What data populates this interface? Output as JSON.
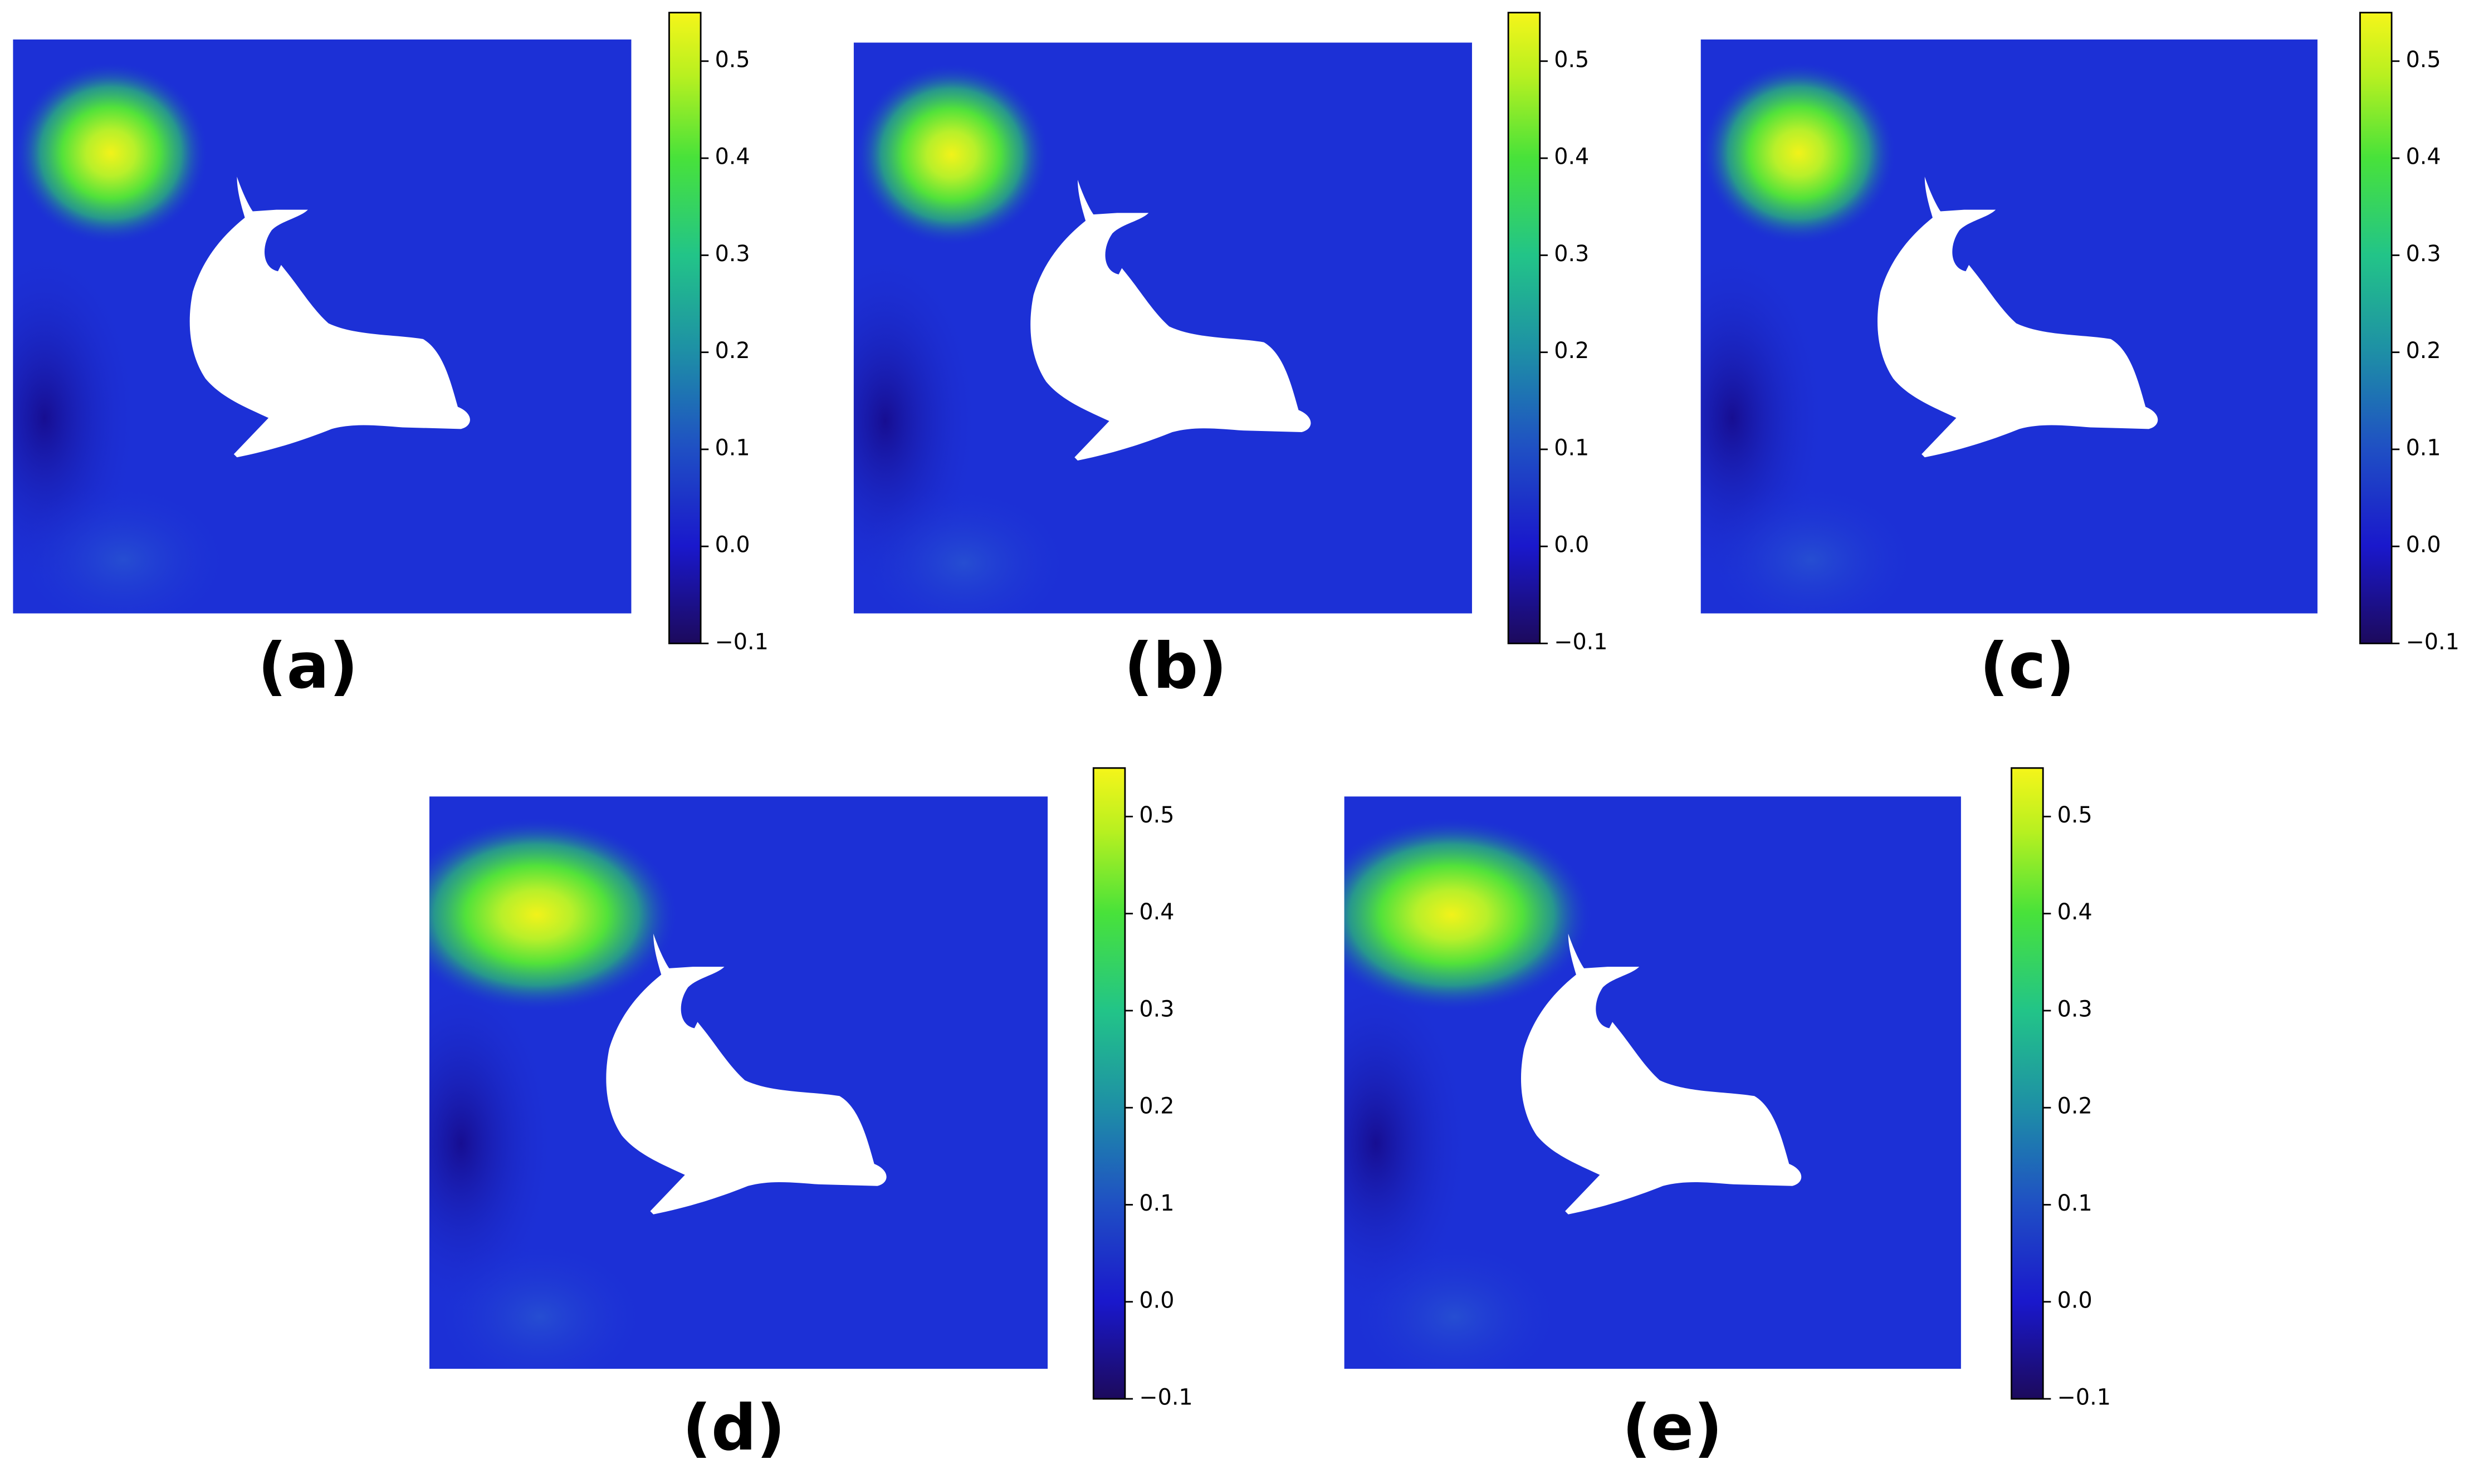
{
  "chart_data": [
    {
      "type": "heatmap",
      "label": "(a)",
      "clim": [
        -0.1,
        0.55
      ],
      "cticks": [
        {
          "value": -0.1,
          "label": "−0.1"
        },
        {
          "value": 0,
          "label": "0.0"
        },
        0.1,
        0.2,
        0.3,
        0.4,
        0.5
      ]
    },
    {
      "type": "heatmap",
      "label": "(b)",
      "clim": [
        -0.1,
        0.55
      ],
      "cticks": [
        {
          "value": -0.1,
          "label": "−0.1"
        },
        {
          "value": 0,
          "label": "0.0"
        },
        0.1,
        0.2,
        0.3,
        0.4,
        0.5
      ]
    },
    {
      "type": "heatmap",
      "label": "(c)",
      "clim": [
        -0.1,
        0.55
      ],
      "cticks": [
        {
          "value": -0.1,
          "label": "−0.1"
        },
        {
          "value": 0,
          "label": "0.0"
        },
        0.1,
        0.2,
        0.3,
        0.4,
        0.5
      ]
    },
    {
      "type": "heatmap",
      "label": "(d)",
      "clim": [
        -0.1,
        0.55
      ],
      "cticks": [
        {
          "value": -0.1,
          "label": "−0.1"
        },
        {
          "value": 0,
          "label": "0.0"
        },
        0.1,
        0.2,
        0.3,
        0.4,
        0.5
      ]
    },
    {
      "type": "heatmap",
      "label": "(e)",
      "clim": [
        -0.1,
        0.55
      ],
      "cticks": [
        {
          "value": -0.1,
          "label": "−0.1"
        },
        {
          "value": 0,
          "label": "0.0"
        },
        0.1,
        0.2,
        0.3,
        0.4,
        0.5
      ]
    }
  ]
}
